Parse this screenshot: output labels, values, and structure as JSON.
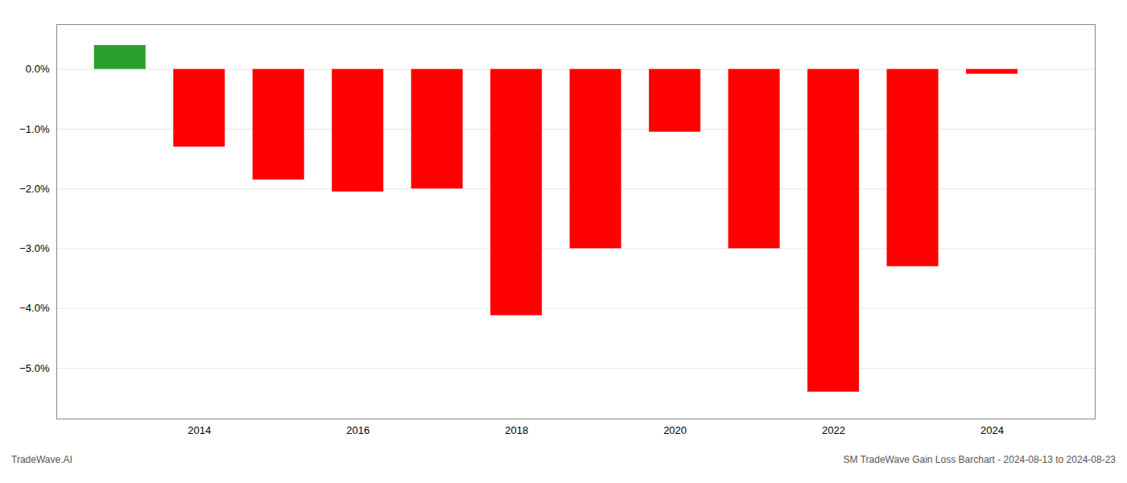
{
  "chart_data": {
    "type": "bar",
    "x": [
      2013,
      2014,
      2015,
      2016,
      2017,
      2018,
      2019,
      2020,
      2021,
      2022,
      2023,
      2024
    ],
    "values": [
      0.4,
      -1.3,
      -1.85,
      -2.05,
      -2.0,
      -4.12,
      -3.0,
      -1.05,
      -3.0,
      -5.4,
      -3.3,
      -0.08
    ],
    "colors": [
      "#2ca02c",
      "#ff0000",
      "#ff0000",
      "#ff0000",
      "#ff0000",
      "#ff0000",
      "#ff0000",
      "#ff0000",
      "#ff0000",
      "#ff0000",
      "#ff0000",
      "#ff0000"
    ],
    "xlim": [
      2012.2,
      2025.3
    ],
    "xticks": [
      2014,
      2016,
      2018,
      2020,
      2022,
      2024
    ],
    "ylim": [
      -5.85,
      0.75
    ],
    "yticks": [
      {
        "value": 0.0,
        "label": "0.0%"
      },
      {
        "value": -1.0,
        "label": "−1.0%"
      },
      {
        "value": -2.0,
        "label": "−2.0%"
      },
      {
        "value": -3.0,
        "label": "−3.0%"
      },
      {
        "value": -4.0,
        "label": "−4.0%"
      },
      {
        "value": -5.0,
        "label": "−5.0%"
      }
    ],
    "grid": true,
    "annotations": [
      "TradeWave.AI",
      "SM TradeWave Gain Loss Barchart - 2024-08-13 to 2024-08-23"
    ]
  }
}
